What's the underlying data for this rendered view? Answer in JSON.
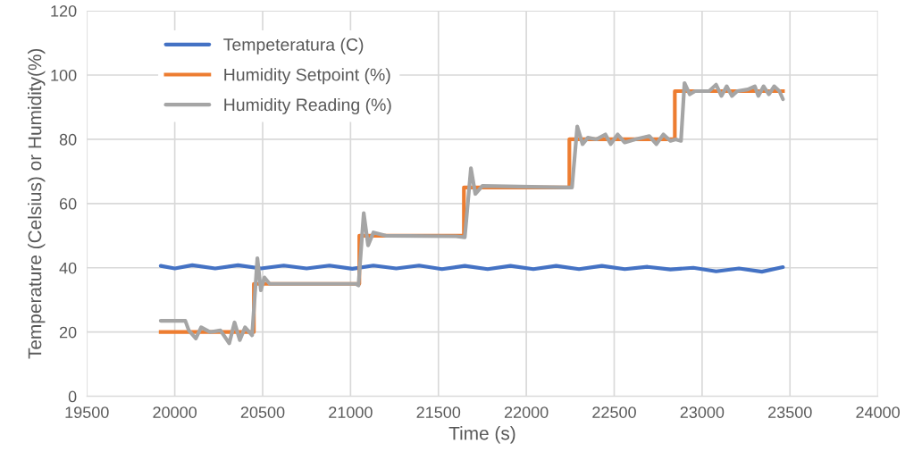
{
  "chart_data": {
    "type": "line",
    "xlabel": "Time (s)",
    "ylabel": "Temperature (Celsius) or Humidity(%)",
    "xlim": [
      19500,
      24000
    ],
    "xticks": [
      19500,
      20000,
      20500,
      21000,
      21500,
      22000,
      22500,
      23000,
      23500,
      24000
    ],
    "ylim": [
      0,
      120
    ],
    "yticks": [
      0,
      20,
      40,
      60,
      80,
      100,
      120
    ],
    "grid": true,
    "legend": "top left",
    "series": [
      {
        "name": "Tempeteratura (C)",
        "color": "#4472c4",
        "x": [
          19920,
          20000,
          20100,
          20230,
          20360,
          20490,
          20620,
          20750,
          20880,
          21010,
          21130,
          21260,
          21390,
          21520,
          21650,
          21780,
          21910,
          22040,
          22170,
          22300,
          22430,
          22560,
          22690,
          22820,
          22950,
          23080,
          23210,
          23340,
          23460
        ],
        "values": [
          40.6,
          39.8,
          40.8,
          39.8,
          40.8,
          39.8,
          40.7,
          39.8,
          40.7,
          39.7,
          40.7,
          39.8,
          40.7,
          39.6,
          40.6,
          39.6,
          40.6,
          39.6,
          40.6,
          39.6,
          40.6,
          39.6,
          40.3,
          39.5,
          40.0,
          38.9,
          39.8,
          38.8,
          40.2
        ]
      },
      {
        "name": "Humidity Setpoint (%)",
        "type": "step",
        "color": "#ed7d31",
        "x": [
          19920,
          20450,
          21050,
          21645,
          22245,
          22845,
          23460
        ],
        "values": [
          20,
          35,
          50,
          65,
          80,
          95,
          95
        ]
      },
      {
        "name": "Humidity Reading (%)",
        "color": "#a5a5a5",
        "x": [
          19920,
          20060,
          20080,
          20120,
          20150,
          20200,
          20260,
          20310,
          20340,
          20370,
          20400,
          20440,
          20470,
          20490,
          20510,
          20540,
          20800,
          21030,
          21045,
          21075,
          21100,
          21130,
          21200,
          21600,
          21650,
          21685,
          21710,
          21750,
          22240,
          22260,
          22290,
          22320,
          22350,
          22400,
          22450,
          22480,
          22520,
          22560,
          22620,
          22700,
          22740,
          22780,
          22820,
          22850,
          22880,
          22900,
          22930,
          22960,
          23040,
          23080,
          23110,
          23140,
          23170,
          23200,
          23260,
          23300,
          23320,
          23350,
          23380,
          23410,
          23440,
          23460
        ],
        "values": [
          23.5,
          23.5,
          20.5,
          18,
          21.5,
          20,
          20.5,
          16.5,
          23,
          17.5,
          21.5,
          19,
          43,
          33,
          37,
          35,
          35,
          35,
          34.5,
          57,
          47,
          51,
          50,
          49.8,
          49.5,
          71,
          63,
          65.5,
          65,
          65,
          84,
          78.5,
          80.5,
          80,
          81.5,
          78.5,
          81.5,
          79,
          80,
          81,
          78.5,
          81.5,
          79.5,
          80,
          79.5,
          97.5,
          94,
          95,
          95,
          97,
          93.5,
          96.5,
          93.5,
          95,
          95.5,
          96.5,
          93.5,
          96.5,
          94,
          96.5,
          95,
          92.5
        ]
      }
    ]
  }
}
